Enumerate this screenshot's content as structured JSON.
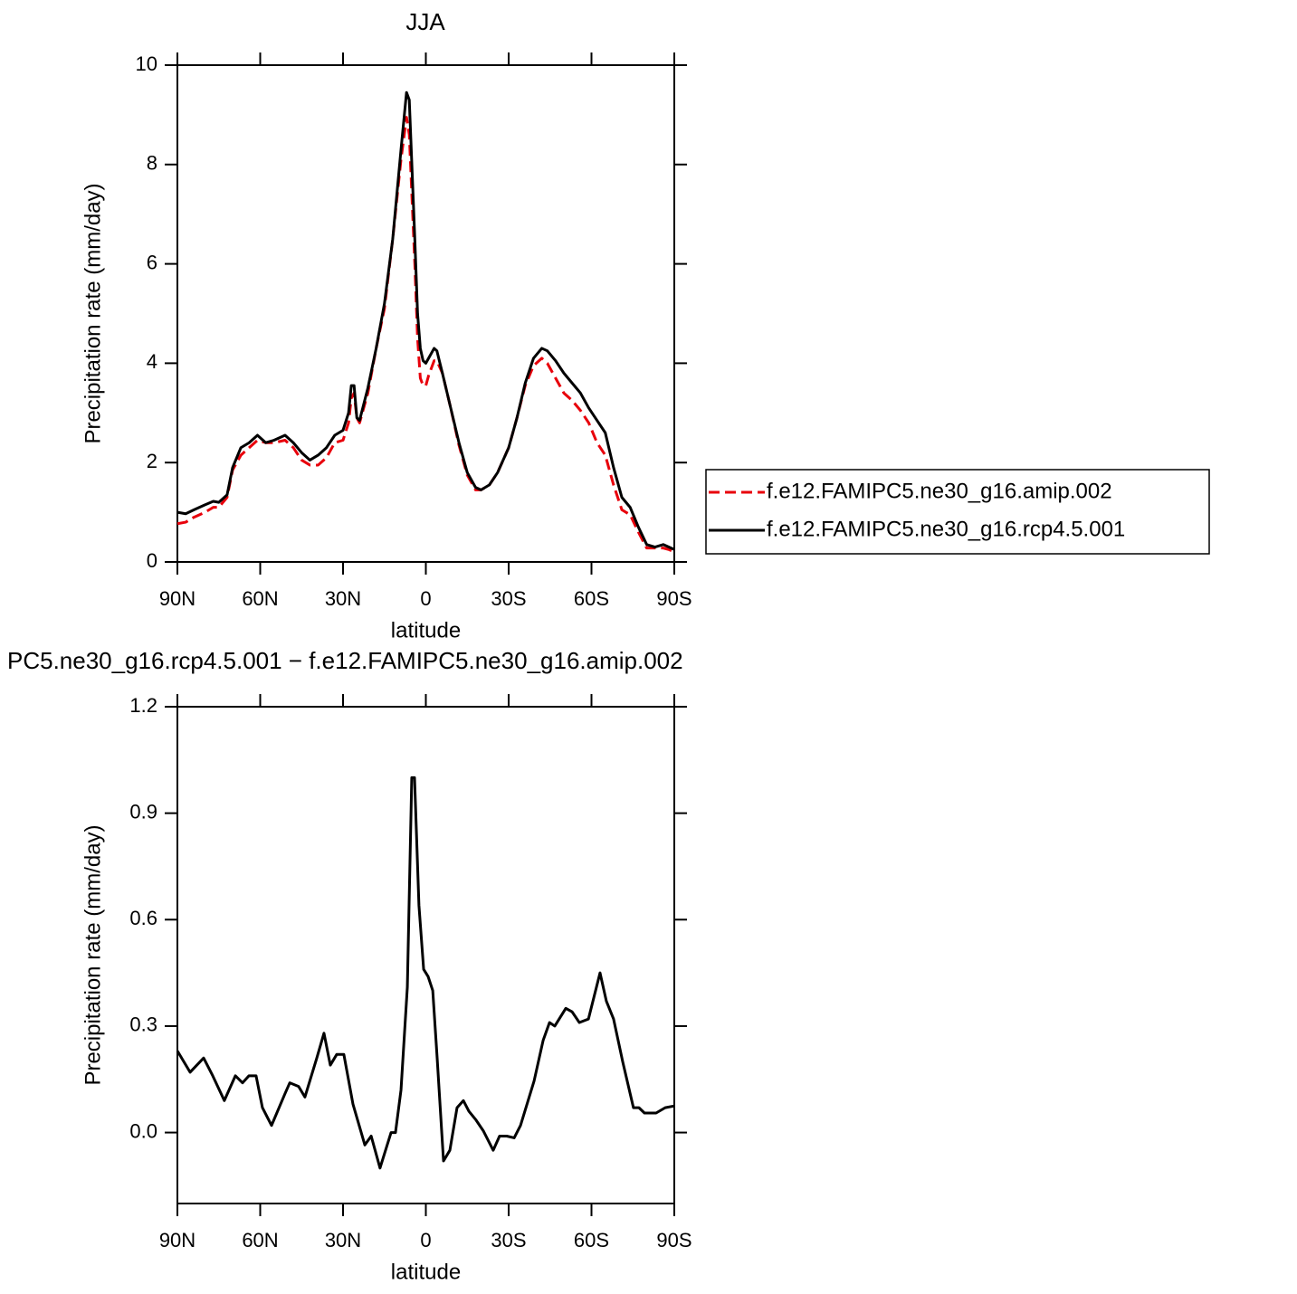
{
  "chart_data": [
    {
      "type": "line",
      "title": "JJA",
      "xlabel": "latitude",
      "ylabel": "Precipitation rate (mm/day)",
      "x": [
        90,
        87,
        84,
        80,
        77,
        75,
        72,
        70,
        67,
        64,
        61,
        58,
        55,
        51,
        48,
        45,
        42,
        39,
        36,
        33,
        30,
        28,
        27,
        26,
        25,
        24,
        21,
        18,
        15,
        12,
        9,
        7,
        6,
        4,
        3,
        2,
        1,
        0,
        -1,
        -3,
        -4,
        -6,
        -9,
        -12,
        -15,
        -18,
        -20,
        -23,
        -26,
        -30,
        -33,
        -36,
        -39,
        -42,
        -44,
        -47,
        -50,
        -53,
        -56,
        -59,
        -62,
        -65,
        -68,
        -71,
        -74,
        -77,
        -80,
        -83,
        -86,
        -88,
        -90
      ],
      "series": [
        {
          "name": "f.e12.FAMIPC5.ne30_g16.amip.002",
          "color": "#e8000b",
          "linestyle": "dashed",
          "values": [
            0.77,
            0.8,
            0.9,
            1.0,
            1.1,
            1.1,
            1.3,
            1.85,
            2.15,
            2.3,
            2.45,
            2.4,
            2.4,
            2.45,
            2.3,
            2.05,
            1.95,
            1.95,
            2.1,
            2.4,
            2.45,
            2.8,
            3.3,
            3.4,
            2.9,
            2.8,
            3.4,
            4.3,
            5.1,
            6.5,
            8.1,
            8.95,
            8.6,
            6.0,
            4.5,
            3.7,
            3.55,
            3.55,
            3.75,
            4.05,
            4.05,
            3.8,
            3.1,
            2.35,
            1.75,
            1.45,
            1.45,
            1.55,
            1.8,
            2.3,
            2.9,
            3.55,
            3.95,
            4.1,
            4.0,
            3.7,
            3.4,
            3.25,
            3.05,
            2.8,
            2.4,
            2.15,
            1.55,
            1.05,
            0.95,
            0.6,
            0.28,
            0.28,
            0.28,
            0.25,
            0.2
          ]
        },
        {
          "name": "f.e12.FAMIPC5.ne30_g16.rcp4.5.001",
          "color": "#000000",
          "linestyle": "solid",
          "values": [
            1.0,
            0.97,
            1.05,
            1.15,
            1.22,
            1.2,
            1.35,
            1.9,
            2.3,
            2.4,
            2.55,
            2.4,
            2.45,
            2.55,
            2.4,
            2.2,
            2.05,
            2.15,
            2.3,
            2.55,
            2.65,
            3.0,
            3.55,
            3.55,
            2.9,
            2.85,
            3.5,
            4.3,
            5.2,
            6.5,
            8.3,
            9.45,
            9.3,
            6.5,
            5.0,
            4.3,
            4.05,
            4.0,
            4.1,
            4.3,
            4.25,
            3.8,
            3.1,
            2.4,
            1.8,
            1.5,
            1.45,
            1.55,
            1.8,
            2.3,
            2.9,
            3.6,
            4.1,
            4.3,
            4.25,
            4.05,
            3.8,
            3.6,
            3.4,
            3.1,
            2.85,
            2.6,
            1.9,
            1.3,
            1.1,
            0.7,
            0.35,
            0.3,
            0.35,
            0.3,
            0.25
          ]
        }
      ],
      "xlim": [
        90,
        -90
      ],
      "xticks": [
        {
          "value": 90,
          "label": "90N"
        },
        {
          "value": 60,
          "label": "60N"
        },
        {
          "value": 30,
          "label": "30N"
        },
        0,
        {
          "value": -30,
          "label": "30S"
        },
        {
          "value": -60,
          "label": "60S"
        },
        {
          "value": -90,
          "label": "90S"
        }
      ],
      "ylim": [
        0,
        10
      ],
      "yticks": [
        0,
        2,
        4,
        6,
        8,
        10
      ],
      "legend": "right"
    },
    {
      "type": "line",
      "title": "PC5.ne30_g16.rcp4.5.001 − f.e12.FAMIPC5.ne30_g16.amip.002",
      "xlabel": "latitude",
      "ylabel": "Precipitation rate (mm/day)",
      "x": [
        90,
        85.4,
        80.5,
        77.2,
        73,
        69,
        66.4,
        64.1,
        61.5,
        59.2,
        55.9,
        51,
        49.3,
        46.1,
        43.8,
        39.5,
        36.9,
        34.6,
        32.3,
        29.7,
        26.4,
        22.1,
        19.8,
        16.6,
        12.6,
        11,
        9,
        6.7,
        5.1,
        4.1,
        2.5,
        0.8,
        -0.8,
        -2.5,
        -4.1,
        -6.4,
        -8.7,
        -11.3,
        -13.6,
        -15.6,
        -18.2,
        -20.8,
        -24.4,
        -26.7,
        -29.3,
        -32,
        -34.3,
        -39.2,
        -42.5,
        -44.8,
        -46.7,
        -50.7,
        -53,
        -55.6,
        -58.9,
        -63.1,
        -65.4,
        -68,
        -71.3,
        -75.2,
        -77.2,
        -79.2,
        -83.4,
        -86.7,
        -90
      ],
      "values": [
        0.23,
        0.17,
        0.21,
        0.16,
        0.09,
        0.16,
        0.14,
        0.16,
        0.16,
        0.07,
        0.02,
        0.11,
        0.14,
        0.13,
        0.1,
        0.21,
        0.28,
        0.19,
        0.22,
        0.22,
        0.08,
        -0.035,
        -0.01,
        -0.1,
        0.0,
        0.0,
        0.12,
        0.41,
        1.0,
        1.0,
        0.64,
        0.46,
        0.44,
        0.4,
        0.21,
        -0.08,
        -0.05,
        0.07,
        0.09,
        0.06,
        0.035,
        0.005,
        -0.05,
        -0.01,
        -0.01,
        -0.015,
        0.02,
        0.145,
        0.26,
        0.31,
        0.3,
        0.35,
        0.34,
        0.31,
        0.32,
        0.45,
        0.37,
        0.32,
        0.2,
        0.07,
        0.07,
        0.055,
        0.055,
        0.07,
        0.075
      ],
      "color": "#000000",
      "xlim": [
        90,
        -90
      ],
      "xticks": [
        {
          "value": 90,
          "label": "90N"
        },
        {
          "value": 60,
          "label": "60N"
        },
        {
          "value": 30,
          "label": "30N"
        },
        0,
        {
          "value": -30,
          "label": "30S"
        },
        {
          "value": -60,
          "label": "60S"
        },
        {
          "value": -90,
          "label": "90S"
        }
      ],
      "ylim": [
        -0.2,
        1.2
      ],
      "yticks": [
        {
          "value": 0,
          "label": "0.0"
        },
        0.3,
        0.6,
        0.9,
        1.2
      ]
    }
  ]
}
